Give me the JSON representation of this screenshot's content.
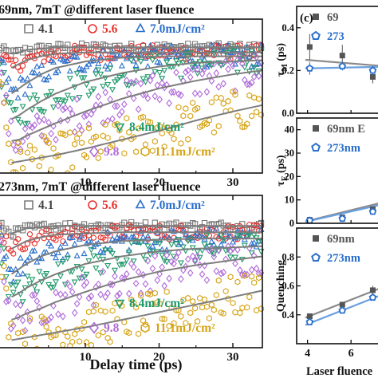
{
  "chart_data": [
    {
      "type": "scatter",
      "panel": "top-left",
      "title": "69nm, 7mT @different laser fluence",
      "xlabel": "",
      "ylabel": "",
      "xlim": [
        -2,
        34
      ],
      "ylim": [
        0,
        1.2
      ],
      "x_ticks": [
        "10",
        "20",
        "30"
      ],
      "legend_lines": [
        [
          {
            "text": "4.1",
            "symbol": "square",
            "color": "#7a7a7a"
          },
          {
            "text": "5.6",
            "symbol": "circle",
            "color": "#e8302c"
          },
          {
            "text": "7.0mJ/cm²",
            "symbol": "triangle",
            "color": "#2a6fcb"
          }
        ],
        [
          {
            "text": "8.4mJ/cm²",
            "symbol": "triangle-down",
            "color": "#1f9a6a"
          }
        ],
        [
          {
            "text": "9.8",
            "symbol": "diamond",
            "color": "#b06ad8"
          },
          {
            "text": "11.1mJ/cm²",
            "symbol": "hexagon",
            "color": "#d6a315"
          }
        ]
      ],
      "series": [
        {
          "fluence": 4.1,
          "color": "#7a7a7a",
          "symbol": "square",
          "x": [
            -2,
            0,
            1,
            2,
            4,
            6,
            10,
            15,
            20,
            25,
            30,
            34
          ],
          "y": [
            0.98,
            0.93,
            0.94,
            0.96,
            0.97,
            0.98,
            0.98,
            0.98,
            0.98,
            0.98,
            0.98,
            0.98
          ]
        },
        {
          "fluence": 5.6,
          "color": "#e8302c",
          "symbol": "circle",
          "x": [
            -2,
            0,
            1,
            2,
            4,
            6,
            10,
            15,
            20,
            25,
            30,
            34
          ],
          "y": [
            0.96,
            0.82,
            0.85,
            0.88,
            0.91,
            0.93,
            0.94,
            0.94,
            0.94,
            0.94,
            0.94,
            0.94
          ]
        },
        {
          "fluence": 7.0,
          "color": "#2a6fcb",
          "symbol": "triangle",
          "x": [
            -2,
            0,
            1,
            2,
            4,
            6,
            10,
            15,
            20,
            25,
            30,
            34
          ],
          "y": [
            0.95,
            0.62,
            0.66,
            0.7,
            0.77,
            0.82,
            0.87,
            0.9,
            0.91,
            0.91,
            0.91,
            0.91
          ]
        },
        {
          "fluence": 8.4,
          "color": "#1f9a6a",
          "symbol": "triangle-down",
          "x": [
            -2,
            0,
            1,
            2,
            4,
            6,
            10,
            15,
            20,
            25,
            30,
            34
          ],
          "y": [
            0.94,
            0.42,
            0.45,
            0.49,
            0.56,
            0.62,
            0.71,
            0.78,
            0.83,
            0.86,
            0.87,
            0.88
          ]
        },
        {
          "fluence": 9.8,
          "color": "#b06ad8",
          "symbol": "diamond",
          "x": [
            -2,
            0,
            1,
            2,
            4,
            6,
            10,
            15,
            20,
            25,
            30,
            34
          ],
          "y": [
            0.93,
            0.25,
            0.26,
            0.29,
            0.34,
            0.39,
            0.48,
            0.58,
            0.66,
            0.72,
            0.77,
            0.8
          ]
        },
        {
          "fluence": 11.1,
          "color": "#d6a315",
          "symbol": "hexagon",
          "x": [
            -2,
            0,
            1,
            2,
            4,
            6,
            10,
            15,
            20,
            25,
            30,
            34
          ],
          "y": [
            0.92,
            0.08,
            0.09,
            0.1,
            0.12,
            0.14,
            0.19,
            0.26,
            0.33,
            0.41,
            0.48,
            0.53
          ]
        }
      ]
    },
    {
      "type": "scatter",
      "panel": "bottom-left",
      "title": "273nm, 7mT @different laser fluence",
      "xlabel": "Delay time (ps)",
      "ylabel": "",
      "xlim": [
        -2,
        34
      ],
      "ylim": [
        0,
        1.2
      ],
      "x_ticks": [
        "10",
        "20",
        "30"
      ],
      "legend_lines": [
        [
          {
            "text": "4.1",
            "symbol": "square",
            "color": "#7a7a7a"
          },
          {
            "text": "5.6",
            "symbol": "circle",
            "color": "#e8302c"
          },
          {
            "text": "7.0mJ/cm²",
            "symbol": "triangle",
            "color": "#2a6fcb"
          }
        ],
        [
          {
            "text": "8.4mJ/cm²",
            "symbol": "triangle-down",
            "color": "#1f9a6a"
          }
        ],
        [
          {
            "text": "9.8",
            "symbol": "diamond",
            "color": "#b06ad8"
          },
          {
            "text": "11.1mJ/cm²",
            "symbol": "hexagon",
            "color": "#d6a315"
          }
        ]
      ],
      "series": [
        {
          "fluence": 4.1,
          "color": "#7a7a7a",
          "symbol": "square",
          "x": [
            -2,
            0,
            1,
            2,
            4,
            6,
            10,
            15,
            20,
            25,
            30,
            34
          ],
          "y": [
            0.98,
            0.9,
            0.92,
            0.94,
            0.95,
            0.96,
            0.96,
            0.96,
            0.96,
            0.96,
            0.96,
            0.96
          ]
        },
        {
          "fluence": 5.6,
          "color": "#e8302c",
          "symbol": "circle",
          "x": [
            -2,
            0,
            1,
            2,
            4,
            6,
            10,
            15,
            20,
            25,
            30,
            34
          ],
          "y": [
            0.97,
            0.78,
            0.81,
            0.84,
            0.87,
            0.89,
            0.9,
            0.91,
            0.91,
            0.91,
            0.91,
            0.91
          ]
        },
        {
          "fluence": 7.0,
          "color": "#2a6fcb",
          "symbol": "triangle",
          "x": [
            -2,
            0,
            1,
            2,
            4,
            6,
            10,
            15,
            20,
            25,
            30,
            34
          ],
          "y": [
            0.96,
            0.58,
            0.62,
            0.66,
            0.72,
            0.76,
            0.81,
            0.84,
            0.85,
            0.86,
            0.86,
            0.86
          ]
        },
        {
          "fluence": 8.4,
          "color": "#1f9a6a",
          "symbol": "triangle-down",
          "x": [
            -2,
            0,
            1,
            2,
            4,
            6,
            10,
            15,
            20,
            25,
            30,
            34
          ],
          "y": [
            0.95,
            0.4,
            0.43,
            0.47,
            0.53,
            0.58,
            0.66,
            0.72,
            0.76,
            0.78,
            0.79,
            0.8
          ]
        },
        {
          "fluence": 9.8,
          "color": "#b06ad8",
          "symbol": "diamond",
          "x": [
            -2,
            0,
            1,
            2,
            4,
            6,
            10,
            15,
            20,
            25,
            30,
            34
          ],
          "y": [
            0.94,
            0.22,
            0.24,
            0.27,
            0.31,
            0.36,
            0.44,
            0.53,
            0.6,
            0.65,
            0.69,
            0.72
          ]
        },
        {
          "fluence": 11.1,
          "color": "#d6a315",
          "symbol": "hexagon",
          "x": [
            -2,
            0,
            1,
            2,
            4,
            6,
            10,
            15,
            20,
            25,
            30,
            34
          ],
          "y": [
            0.93,
            0.06,
            0.07,
            0.08,
            0.1,
            0.12,
            0.16,
            0.22,
            0.28,
            0.34,
            0.4,
            0.45
          ]
        }
      ]
    },
    {
      "type": "scatter",
      "panel": "right-top",
      "panel_label": "(c)",
      "title": "",
      "xlabel": "",
      "ylabel": "τM (ps)",
      "ylabel_main": "τ",
      "ylabel_sub": "M",
      "ylabel_unit": " (ps)",
      "xlim": [
        3.5,
        9
      ],
      "ylim": [
        0,
        0.5
      ],
      "y_ticks": [
        "0.0",
        "0.2",
        "0.4"
      ],
      "legend": [
        {
          "text": "69",
          "symbol": "square",
          "color": "#555555"
        },
        {
          "text": "273",
          "symbol": "pentagon",
          "color": "#2a6fcb"
        }
      ],
      "series": [
        {
          "name": "69",
          "color": "#555555",
          "symbol": "square",
          "x": [
            4.1,
            5.6,
            7.0,
            8.4
          ],
          "y": [
            0.31,
            0.27,
            0.17,
            0.22
          ],
          "err": [
            0.06,
            0.05,
            0.03,
            0.03
          ],
          "fit": [
            0.25,
            0.21
          ]
        },
        {
          "name": "273",
          "color": "#2a6fcb",
          "symbol": "pentagon",
          "x": [
            4.1,
            5.6,
            7.0,
            8.4
          ],
          "y": [
            0.21,
            0.22,
            0.2,
            0.21
          ],
          "err": [
            0.03,
            0.02,
            0.02,
            0.02
          ],
          "fit": [
            0.21,
            0.22
          ]
        }
      ]
    },
    {
      "type": "scatter",
      "panel": "right-middle",
      "title": "",
      "xlabel": "",
      "ylabel": "τE (ps)",
      "ylabel_main": "τ",
      "ylabel_sub": "E",
      "ylabel_unit": " (ps)",
      "xlim": [
        3.5,
        9
      ],
      "ylim": [
        0,
        45
      ],
      "y_ticks": [
        "0",
        "10",
        "20",
        "30",
        "40"
      ],
      "legend": [
        {
          "text": "69nm E",
          "symbol": "square",
          "color": "#555555"
        },
        {
          "text": "273nm",
          "symbol": "pentagon",
          "color": "#2a6fcb"
        }
      ],
      "series": [
        {
          "name": "69nm E",
          "color": "#555555",
          "symbol": "square",
          "x": [
            4.1,
            5.6,
            7.0,
            8.4
          ],
          "y": [
            1.5,
            2.5,
            6.0,
            12.0
          ],
          "fit": [
            0.8,
            12.0
          ]
        },
        {
          "name": "273nm",
          "color": "#2a6fcb",
          "symbol": "pentagon",
          "x": [
            4.1,
            5.6,
            7.0,
            8.4
          ],
          "y": [
            1.2,
            2.0,
            5.0,
            10.0
          ],
          "fit": [
            0.6,
            11.0
          ]
        }
      ]
    },
    {
      "type": "scatter",
      "panel": "right-bottom",
      "title": "",
      "xlabel": "Laser fluence",
      "ylabel": "Quenching",
      "xlim": [
        3.5,
        9
      ],
      "ylim": [
        0.2,
        1.0
      ],
      "x_ticks": [
        "4",
        "6",
        "8"
      ],
      "y_ticks": [
        "0.4",
        "0.6",
        "0.8"
      ],
      "legend": [
        {
          "text": "69nm",
          "symbol": "square",
          "color": "#555555"
        },
        {
          "text": "273nm",
          "symbol": "pentagon",
          "color": "#2a6fcb"
        }
      ],
      "series": [
        {
          "name": "69nm",
          "color": "#555555",
          "symbol": "square",
          "x": [
            4.1,
            5.6,
            7.0,
            8.4
          ],
          "y": [
            0.39,
            0.47,
            0.57,
            0.66
          ],
          "err": [
            0.02,
            0.02,
            0.03,
            0.03
          ],
          "fit": [
            0.38,
            0.67
          ]
        },
        {
          "name": "273nm",
          "color": "#2a6fcb",
          "symbol": "pentagon",
          "x": [
            4.1,
            5.6,
            7.0,
            8.4
          ],
          "y": [
            0.35,
            0.43,
            0.52,
            0.6
          ],
          "err": [
            0.02,
            0.02,
            0.02,
            0.02
          ],
          "fit": [
            0.33,
            0.62
          ]
        }
      ]
    }
  ]
}
